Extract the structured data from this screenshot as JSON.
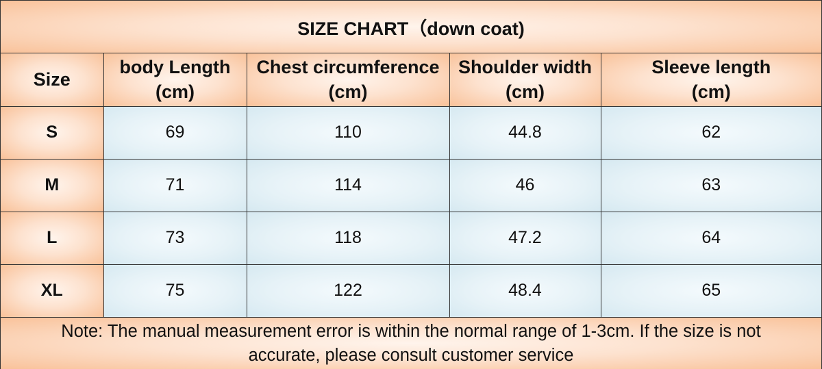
{
  "title": "SIZE CHART（down coat)",
  "headers": {
    "size": "Size",
    "body_length": [
      "body Length",
      "(cm)"
    ],
    "chest": [
      "Chest circumference",
      "(cm)"
    ],
    "shoulder": [
      "Shoulder width",
      "(cm)"
    ],
    "sleeve": [
      "Sleeve length",
      "(cm)"
    ]
  },
  "rows": [
    {
      "size": "S",
      "body_length": "69",
      "chest": "110",
      "shoulder": "44.8",
      "sleeve": "62"
    },
    {
      "size": "M",
      "body_length": "71",
      "chest": "114",
      "shoulder": "46",
      "sleeve": "63"
    },
    {
      "size": "L",
      "body_length": "73",
      "chest": "118",
      "shoulder": "47.2",
      "sleeve": "64"
    },
    {
      "size": "XL",
      "body_length": "75",
      "chest": "122",
      "shoulder": "48.4",
      "sleeve": "65"
    }
  ],
  "note": [
    "Note: The manual measurement error is within the normal range of 1-3cm. If the size is not",
    "accurate, please consult customer service"
  ],
  "colors": {
    "header_bg": "#f9c29a",
    "cell_bg": "#e6f2f7",
    "border": "#333333"
  }
}
